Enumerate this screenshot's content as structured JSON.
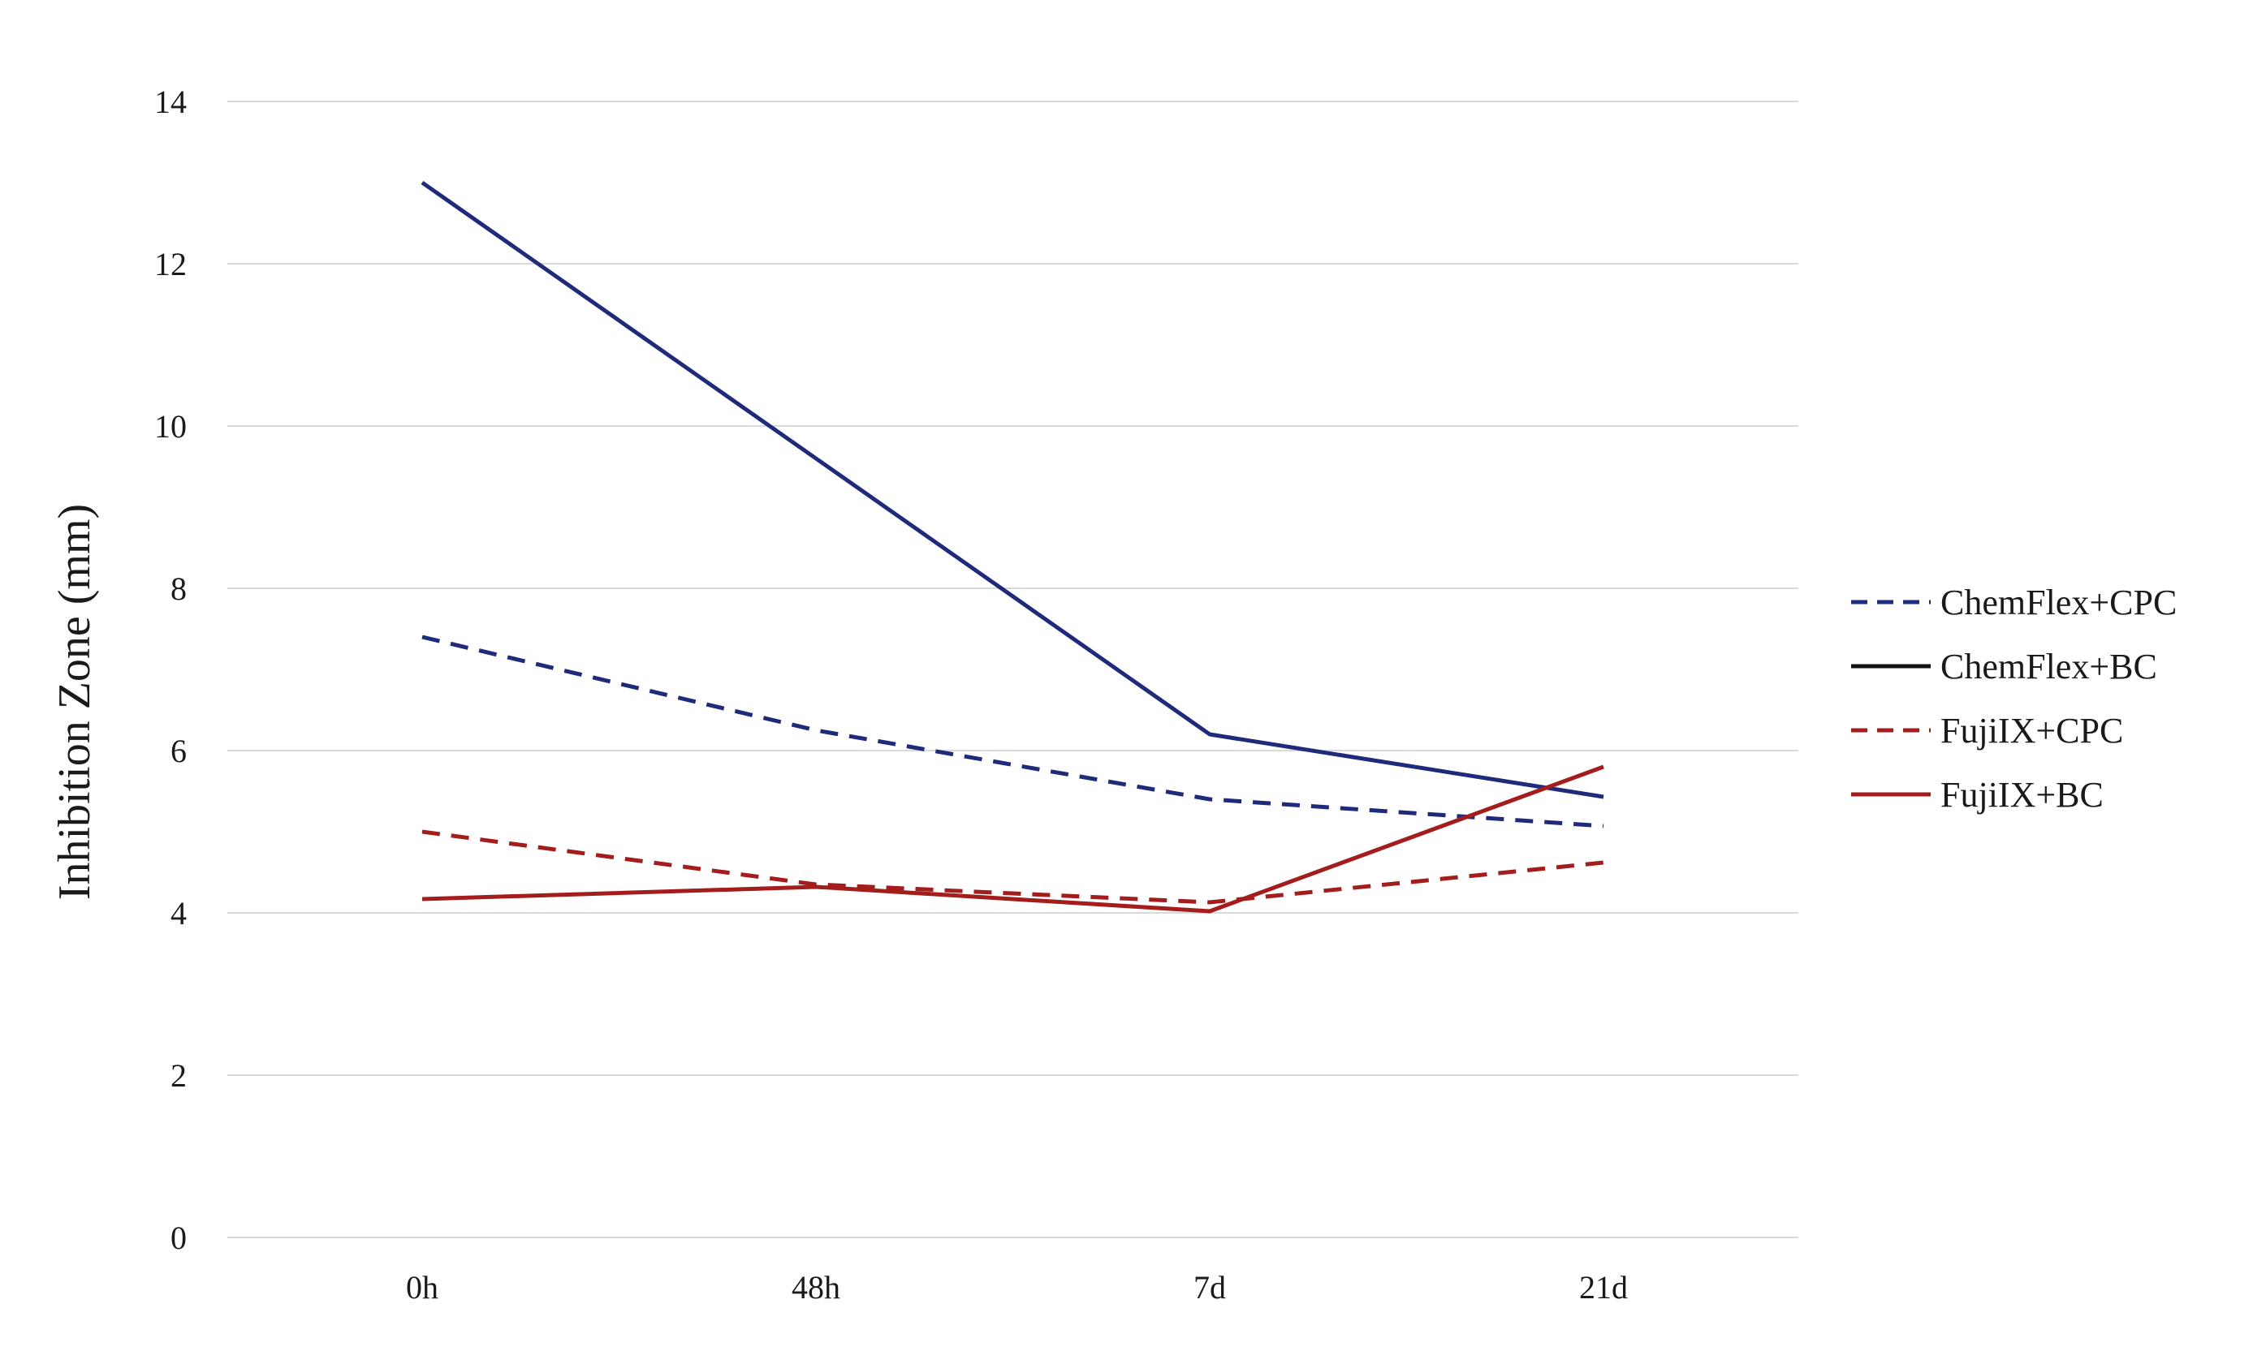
{
  "chart_data": {
    "type": "line",
    "title": "",
    "xlabel": "",
    "ylabel": "Inhibition Zone (mm)",
    "categories": [
      "0h",
      "48h",
      "7d",
      "21d"
    ],
    "ylim": [
      0,
      14
    ],
    "yticks": [
      0,
      2,
      4,
      6,
      8,
      10,
      12,
      14
    ],
    "grid": true,
    "legend_position": "right",
    "series": [
      {
        "name": "ChemFlex+CPC",
        "values": [
          7.4,
          6.25,
          5.4,
          5.07
        ],
        "color": "#1f2a7a",
        "dashed": true
      },
      {
        "name": "ChemFlex+BC",
        "values": [
          13.0,
          9.6,
          6.2,
          5.43
        ],
        "color": "#1f2a7a",
        "legend_color": "#111111",
        "dashed": false
      },
      {
        "name": "FujiIX+CPC",
        "values": [
          5.0,
          4.35,
          4.13,
          4.62
        ],
        "color": "#a31d1d",
        "dashed": true
      },
      {
        "name": "FujiIX+BC",
        "values": [
          4.17,
          4.32,
          4.02,
          5.8
        ],
        "color": "#a31d1d",
        "dashed": false
      }
    ]
  }
}
